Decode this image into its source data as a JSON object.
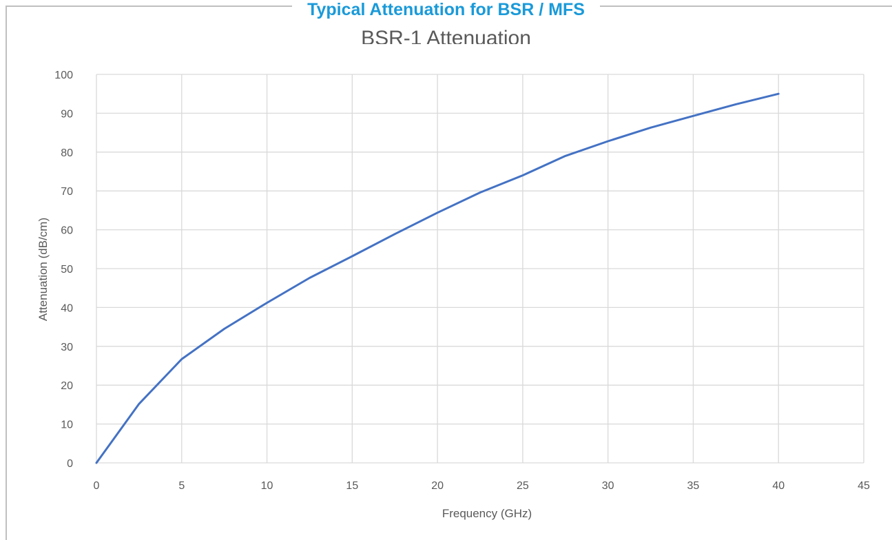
{
  "banner": {
    "title": "Typical Attenuation for BSR / MFS"
  },
  "chart_data": {
    "type": "line",
    "title": "BSR-1 Attenuation",
    "xlabel": "Frequency (GHz)",
    "ylabel": "Attenuation (dB/cm)",
    "xlim": [
      0,
      45
    ],
    "ylim": [
      0,
      100
    ],
    "xticks": [
      0,
      5,
      10,
      15,
      20,
      25,
      30,
      35,
      40,
      45
    ],
    "yticks": [
      0,
      10,
      20,
      30,
      40,
      50,
      60,
      70,
      80,
      90,
      100
    ],
    "grid": true,
    "series_color": "#4472c4",
    "series": [
      {
        "x": [
          0,
          2.5,
          5,
          7.5,
          10,
          12.5,
          15,
          17.5,
          20,
          22.5,
          25,
          27.5,
          30,
          32.5,
          35,
          37.5,
          40
        ],
        "values": [
          0,
          15.2,
          26.7,
          34.5,
          41.2,
          47.6,
          53.2,
          58.9,
          64.4,
          69.6,
          74.0,
          79.0,
          82.8,
          86.3,
          89.3,
          92.3,
          95.0
        ]
      }
    ]
  }
}
